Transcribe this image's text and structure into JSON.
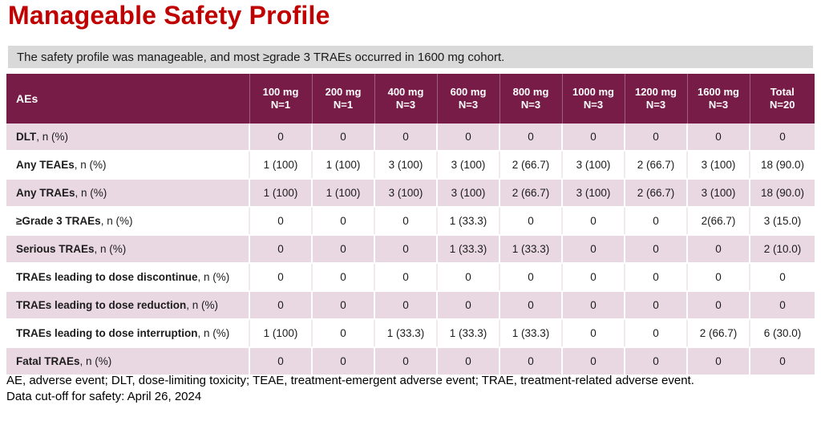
{
  "page": {
    "title": "Manageable Safety Profile",
    "subtitle": "The safety profile was manageable, and most ≥grade 3 TRAEs occurred in 1600 mg cohort.",
    "footnote_line1": "AE, adverse event; DLT, dose-limiting toxicity; TEAE, treatment-emergent adverse event; TRAE, treatment-related adverse event.",
    "footnote_line2": "Data cut-off for safety: April 26, 2024"
  },
  "colors": {
    "accent_red": "#C00000",
    "header_maroon": "#771B47",
    "row_pink": "#E9D8E1",
    "subtitle_gray": "#D9D9D9"
  },
  "table": {
    "header": {
      "first_col": "AEs",
      "columns": [
        {
          "dose": "100 mg",
          "n": "N=1"
        },
        {
          "dose": "200 mg",
          "n": "N=1"
        },
        {
          "dose": "400 mg",
          "n": "N=3"
        },
        {
          "dose": "600 mg",
          "n": "N=3"
        },
        {
          "dose": "800 mg",
          "n": "N=3"
        },
        {
          "dose": "1000 mg",
          "n": "N=3"
        },
        {
          "dose": "1200 mg",
          "n": "N=3"
        },
        {
          "dose": "1600 mg",
          "n": "N=3"
        },
        {
          "dose": "Total",
          "n": "N=20"
        }
      ]
    },
    "rows": [
      {
        "label": "DLT",
        "suffix": ", n (%)",
        "values": [
          "0",
          "0",
          "0",
          "0",
          "0",
          "0",
          "0",
          "0",
          "0"
        ]
      },
      {
        "label": "Any TEAEs",
        "suffix": ", n (%)",
        "values": [
          "1 (100)",
          "1 (100)",
          "3 (100)",
          "3 (100)",
          "2 (66.7)",
          "3 (100)",
          "2 (66.7)",
          "3 (100)",
          "18 (90.0)"
        ]
      },
      {
        "label": "Any TRAEs",
        "suffix": ", n (%)",
        "values": [
          "1 (100)",
          "1 (100)",
          "3 (100)",
          "3 (100)",
          "2 (66.7)",
          "3 (100)",
          "2 (66.7)",
          "3 (100)",
          "18 (90.0)"
        ]
      },
      {
        "label": "≥Grade 3 TRAEs",
        "suffix": ", n (%)",
        "values": [
          "0",
          "0",
          "0",
          "1 (33.3)",
          "0",
          "0",
          "0",
          "2(66.7)",
          "3 (15.0)"
        ]
      },
      {
        "label": "Serious TRAEs",
        "suffix": ", n (%)",
        "values": [
          "0",
          "0",
          "0",
          "1 (33.3)",
          "1 (33.3)",
          "0",
          "0",
          "0",
          "2 (10.0)"
        ]
      },
      {
        "label": "TRAEs leading to dose discontinue",
        "suffix": ", n (%)",
        "values": [
          "0",
          "0",
          "0",
          "0",
          "0",
          "0",
          "0",
          "0",
          "0"
        ]
      },
      {
        "label": "TRAEs leading to dose reduction",
        "suffix": ", n (%)",
        "values": [
          "0",
          "0",
          "0",
          "0",
          "0",
          "0",
          "0",
          "0",
          "0"
        ]
      },
      {
        "label": "TRAEs leading to dose interruption",
        "suffix": ", n (%)",
        "values": [
          "1 (100)",
          "0",
          "1 (33.3)",
          "1 (33.3)",
          "1 (33.3)",
          "0",
          "0",
          "2 (66.7)",
          "6 (30.0)"
        ]
      },
      {
        "label": "Fatal TRAEs",
        "suffix": ", n (%)",
        "values": [
          "0",
          "0",
          "0",
          "0",
          "0",
          "0",
          "0",
          "0",
          "0"
        ]
      }
    ]
  }
}
